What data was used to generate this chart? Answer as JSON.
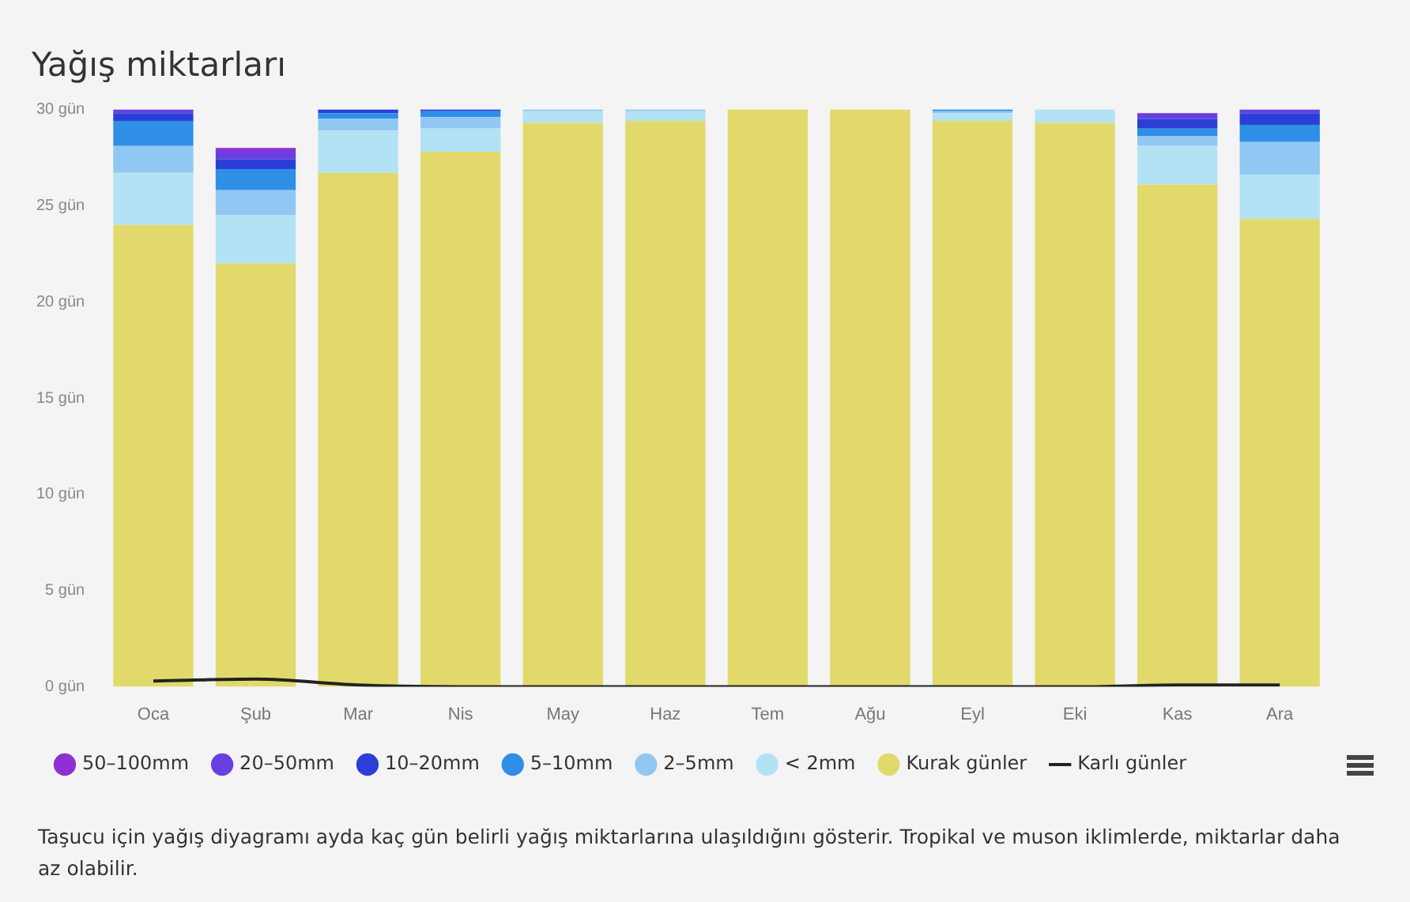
{
  "chart_data": {
    "type": "bar",
    "title": "Yağış miktarları",
    "stacked": true,
    "categories": [
      "Oca",
      "Şub",
      "Mar",
      "Nis",
      "May",
      "Haz",
      "Tem",
      "Ağu",
      "Eyl",
      "Eki",
      "Kas",
      "Ara"
    ],
    "series": [
      {
        "name": "Kurak günler",
        "color": "#e2d96c",
        "values": [
          24,
          22,
          26.7,
          27.8,
          29.3,
          29.4,
          30,
          30,
          29.4,
          29.3,
          26.1,
          24.3
        ]
      },
      {
        "name": "< 2mm",
        "color": "#b3e2f5",
        "values": [
          2.7,
          2.5,
          2.2,
          1.2,
          0.6,
          0.5,
          0,
          0,
          0.4,
          0.7,
          2.0,
          2.3
        ]
      },
      {
        "name": "2–5mm",
        "color": "#90c8f3",
        "values": [
          1.4,
          1.3,
          0.6,
          0.6,
          0.1,
          0.1,
          0,
          0,
          0.1,
          0,
          0.5,
          1.7
        ]
      },
      {
        "name": "5–10mm",
        "color": "#2f8ee6",
        "values": [
          1.3,
          1.1,
          0.3,
          0.3,
          0,
          0,
          0,
          0,
          0.1,
          0,
          0.4,
          0.9
        ]
      },
      {
        "name": "10–20mm",
        "color": "#2b3fd6",
        "values": [
          0.4,
          0.5,
          0.2,
          0.1,
          0,
          0,
          0,
          0,
          0,
          0,
          0.5,
          0.6
        ]
      },
      {
        "name": "20–50mm",
        "color": "#6840e0",
        "values": [
          0.2,
          0.4,
          0,
          0,
          0,
          0,
          0,
          0,
          0,
          0,
          0.3,
          0.2
        ]
      },
      {
        "name": "50–100mm",
        "color": "#8e30d6",
        "values": [
          0,
          0.2,
          0,
          0,
          0,
          0,
          0,
          0,
          0,
          0,
          0,
          0
        ]
      },
      {
        "name": "Karlı günler",
        "type": "line",
        "color": "#222222",
        "values": [
          0.3,
          0.4,
          0.1,
          0,
          0,
          0,
          0,
          0,
          0,
          0,
          0.1,
          0.1
        ]
      }
    ],
    "ylim": [
      0,
      30
    ],
    "yticks": [
      {
        "value": 0,
        "label": "0 gün"
      },
      {
        "value": 5,
        "label": "5 gün"
      },
      {
        "value": 10,
        "label": "10 gün"
      },
      {
        "value": 15,
        "label": "15 gün"
      },
      {
        "value": 20,
        "label": "20 gün"
      },
      {
        "value": 25,
        "label": "25 gün"
      },
      {
        "value": 30,
        "label": "30 gün"
      }
    ],
    "grid": false,
    "legend": "bottom",
    "marker": "none",
    "annotations": [
      "Taşucu için yağış diyagramı ayda kaç gün belirli yağış miktarlarına ulaşıldığını gösterir. Tropikal ve muson iklimlerde, miktarlar daha az olabilir."
    ]
  }
}
